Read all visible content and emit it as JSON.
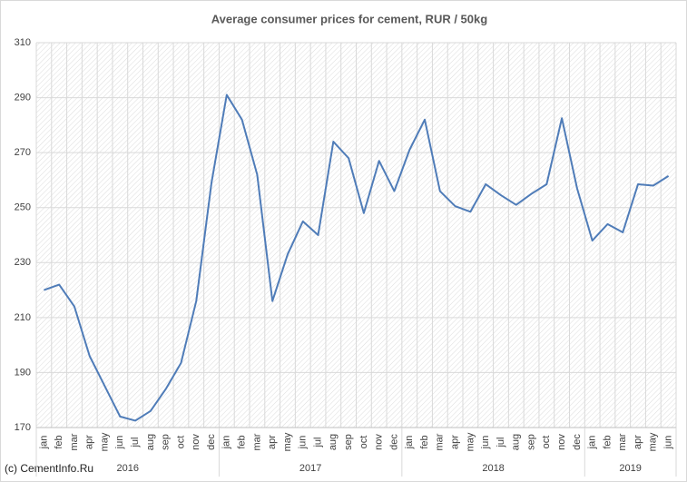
{
  "chart_data": {
    "type": "line",
    "title": "Average consumer prices for cement, RUR / 50kg",
    "footer": "(c) CementInfo.Ru",
    "categories": [
      "jan",
      "feb",
      "mar",
      "apr",
      "may",
      "jun",
      "jul",
      "aug",
      "sep",
      "oct",
      "nov",
      "dec",
      "jan",
      "feb",
      "mar",
      "apr",
      "may",
      "jun",
      "jul",
      "aug",
      "sep",
      "oct",
      "nov",
      "dec",
      "jan",
      "feb",
      "mar",
      "apr",
      "may",
      "jun",
      "jul",
      "aug",
      "sep",
      "oct",
      "nov",
      "dec",
      "jan",
      "feb",
      "mar",
      "apr",
      "may",
      "jun"
    ],
    "category_groups": [
      {
        "label": "2016",
        "size": 12
      },
      {
        "label": "2017",
        "size": 12
      },
      {
        "label": "2018",
        "size": 12
      },
      {
        "label": "2019",
        "size": 6
      }
    ],
    "series": [
      {
        "name": "Average consumer price",
        "color": "#4f7cb8",
        "values": [
          220,
          222,
          214,
          196,
          185,
          174,
          172.5,
          176,
          184,
          193.5,
          216,
          259,
          291,
          282,
          262,
          216,
          233,
          245,
          240,
          274,
          268,
          248,
          267,
          256,
          271,
          282,
          256,
          250.5,
          248.5,
          258.5,
          254.5,
          251,
          255,
          258.5,
          282.5,
          257,
          238,
          244,
          241,
          258.5,
          258,
          261.5
        ]
      }
    ],
    "ylim": [
      170,
      310
    ],
    "yticks": [
      170,
      190,
      210,
      230,
      250,
      270,
      290,
      310
    ],
    "grid": true
  }
}
